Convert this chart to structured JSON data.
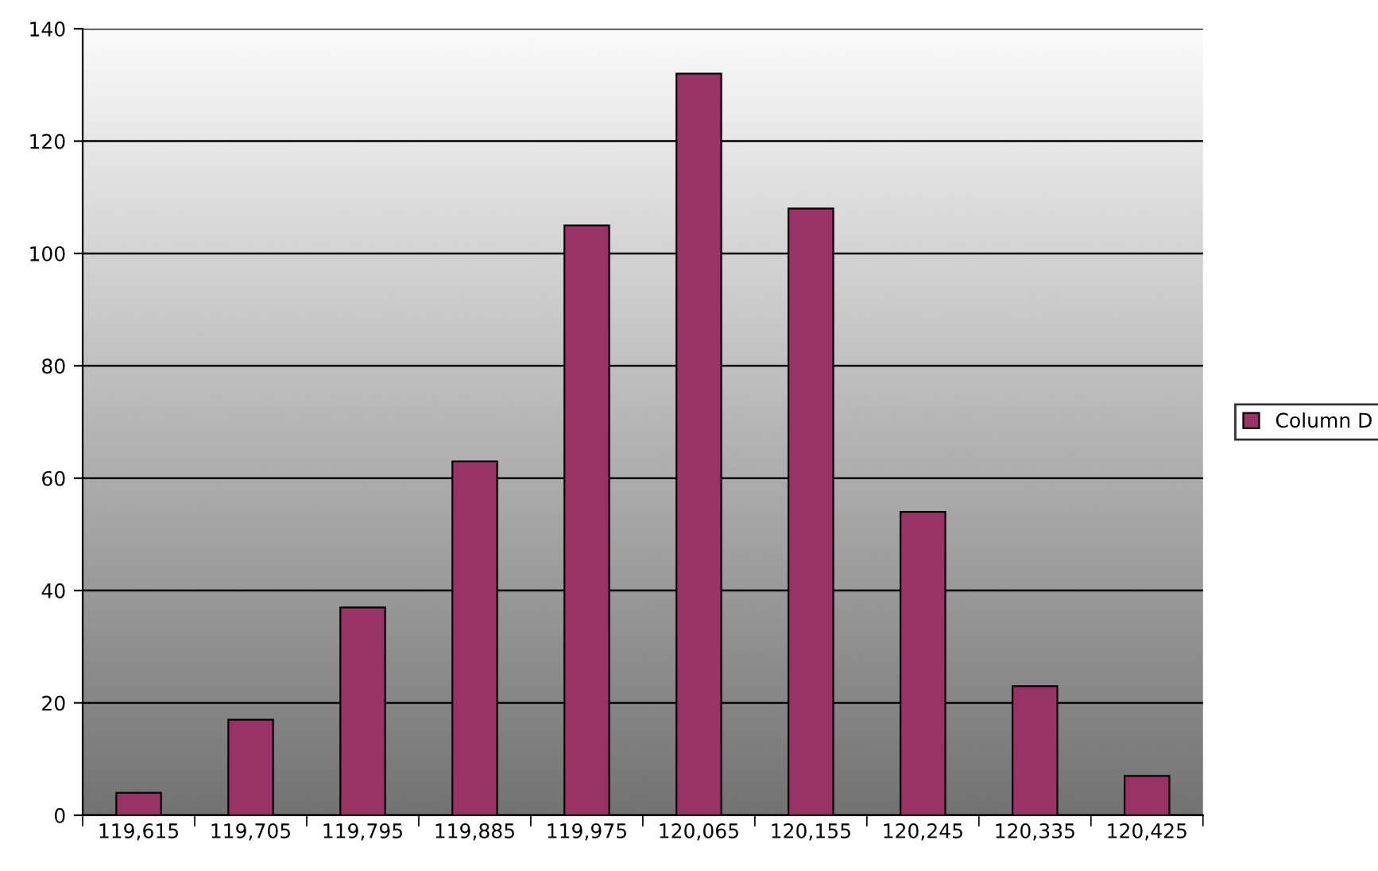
{
  "chart_data": {
    "type": "bar",
    "categories": [
      "119,615",
      "119,705",
      "119,795",
      "119,885",
      "119,975",
      "120,065",
      "120,155",
      "120,245",
      "120,335",
      "120,425"
    ],
    "series": [
      {
        "name": "Column D",
        "color": "#993366",
        "values": [
          4,
          17,
          37,
          63,
          105,
          132,
          108,
          54,
          23,
          7
        ]
      }
    ],
    "ylim": [
      0,
      140
    ],
    "yticks": [
      0,
      20,
      40,
      60,
      80,
      100,
      120,
      140
    ],
    "grid": "y",
    "legend": "right"
  }
}
